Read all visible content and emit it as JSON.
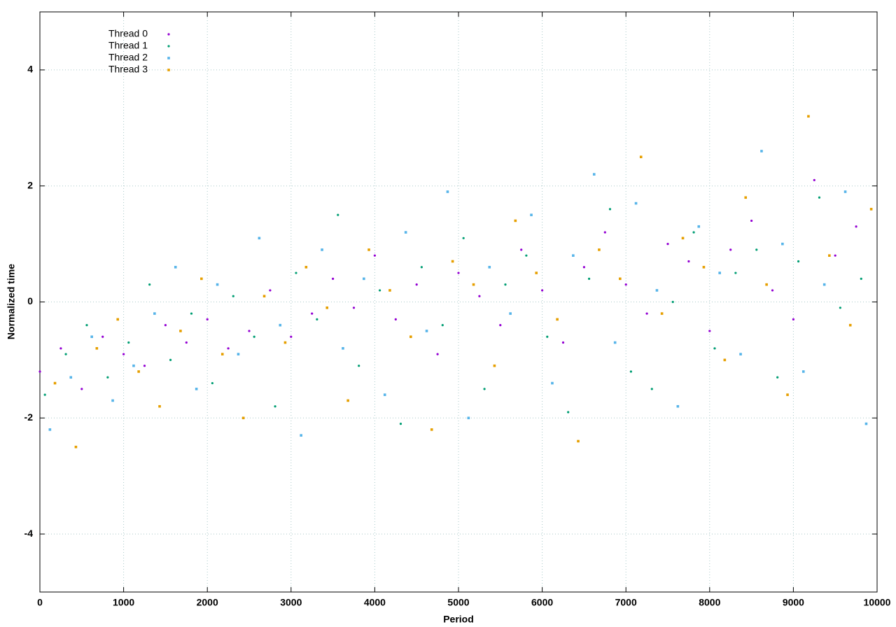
{
  "chart_data": {
    "type": "scatter",
    "xlabel": "Period",
    "ylabel": "Normalized time",
    "xlim": [
      0,
      10000
    ],
    "ylim": [
      -5,
      5
    ],
    "xticks": [
      0,
      1000,
      2000,
      3000,
      4000,
      5000,
      6000,
      7000,
      8000,
      9000,
      10000
    ],
    "yticks": [
      -4,
      -2,
      0,
      2,
      4
    ],
    "grid": true,
    "legend": "top-left",
    "series": [
      {
        "name": "Thread 0",
        "color": "#9400d3",
        "marker": "dot",
        "x": [
          0,
          250,
          500,
          750,
          1000,
          1250,
          1500,
          1750,
          2000,
          2250,
          2500,
          2750,
          3000,
          3250,
          3500,
          3750,
          4000,
          4250,
          4500,
          4750,
          5000,
          5250,
          5500,
          5750,
          6000,
          6250,
          6500,
          6750,
          7000,
          7250,
          7500,
          7750,
          8000,
          8250,
          8500,
          8750,
          9000,
          9250,
          9500,
          9750
        ],
        "values": [
          -1.2,
          -0.8,
          -1.5,
          -0.6,
          -0.9,
          -1.1,
          -0.4,
          -0.7,
          -0.3,
          -0.8,
          -0.5,
          0.2,
          -0.6,
          -0.2,
          0.4,
          -0.1,
          0.8,
          -0.3,
          0.3,
          -0.9,
          0.5,
          0.1,
          -0.4,
          0.9,
          0.2,
          -0.7,
          0.6,
          1.2,
          0.3,
          -0.2,
          1.0,
          0.7,
          -0.5,
          0.9,
          1.4,
          0.2,
          -0.3,
          2.1,
          0.8,
          1.3
        ]
      },
      {
        "name": "Thread 1",
        "color": "#009e73",
        "marker": "dot",
        "x": [
          60,
          310,
          560,
          810,
          1060,
          1310,
          1560,
          1810,
          2060,
          2310,
          2560,
          2810,
          3060,
          3310,
          3560,
          3810,
          4060,
          4310,
          4560,
          4810,
          5060,
          5310,
          5560,
          5810,
          6060,
          6310,
          6560,
          6810,
          7060,
          7310,
          7560,
          7810,
          8060,
          8310,
          8560,
          8810,
          9060,
          9310,
          9560,
          9810
        ],
        "values": [
          -1.6,
          -0.9,
          -0.4,
          -1.3,
          -0.7,
          0.3,
          -1.0,
          -0.2,
          -1.4,
          0.1,
          -0.6,
          -1.8,
          0.5,
          -0.3,
          1.5,
          -1.1,
          0.2,
          -2.1,
          0.6,
          -0.4,
          1.1,
          -1.5,
          0.3,
          0.8,
          -0.6,
          -1.9,
          0.4,
          1.6,
          -1.2,
          -1.5,
          0.0,
          1.2,
          -0.8,
          0.5,
          0.9,
          -1.3,
          0.7,
          1.8,
          -0.1,
          0.4
        ]
      },
      {
        "name": "Thread 2",
        "color": "#56b4e9",
        "marker": "square",
        "x": [
          120,
          370,
          620,
          870,
          1120,
          1370,
          1620,
          1870,
          2120,
          2370,
          2620,
          2870,
          3120,
          3370,
          3620,
          3870,
          4120,
          4370,
          4620,
          4870,
          5120,
          5370,
          5620,
          5870,
          6120,
          6370,
          6620,
          6870,
          7120,
          7370,
          7620,
          7870,
          8120,
          8370,
          8620,
          8870,
          9120,
          9370,
          9620,
          9870
        ],
        "values": [
          -2.2,
          -1.3,
          -0.6,
          -1.7,
          -1.1,
          -0.2,
          0.6,
          -1.5,
          0.3,
          -0.9,
          1.1,
          -0.4,
          -2.3,
          0.9,
          -0.8,
          0.4,
          -1.6,
          1.2,
          -0.5,
          1.9,
          -2.0,
          0.6,
          -0.2,
          1.5,
          -1.4,
          0.8,
          2.2,
          -0.7,
          1.7,
          0.2,
          -1.8,
          1.3,
          0.5,
          -0.9,
          2.6,
          1.0,
          -1.2,
          0.3,
          1.9,
          -2.1
        ]
      },
      {
        "name": "Thread 3",
        "color": "#e69f00",
        "marker": "square",
        "x": [
          180,
          430,
          680,
          930,
          1180,
          1430,
          1680,
          1930,
          2180,
          2430,
          2680,
          2930,
          3180,
          3430,
          3680,
          3930,
          4180,
          4430,
          4680,
          4930,
          5180,
          5430,
          5680,
          5930,
          6180,
          6430,
          6680,
          6930,
          7180,
          7430,
          7680,
          7930,
          8180,
          8430,
          8680,
          8930,
          9180,
          9430,
          9680,
          9930
        ],
        "values": [
          -1.4,
          -2.5,
          -0.8,
          -0.3,
          -1.2,
          -1.8,
          -0.5,
          0.4,
          -0.9,
          -2.0,
          0.1,
          -0.7,
          0.6,
          -0.1,
          -1.7,
          0.9,
          0.2,
          -0.6,
          -2.2,
          0.7,
          0.3,
          -1.1,
          1.4,
          0.5,
          -0.3,
          -2.4,
          0.9,
          0.4,
          2.5,
          -0.2,
          1.1,
          0.6,
          -1.0,
          1.8,
          0.3,
          -1.6,
          3.2,
          0.8,
          -0.4,
          1.6
        ]
      }
    ]
  }
}
